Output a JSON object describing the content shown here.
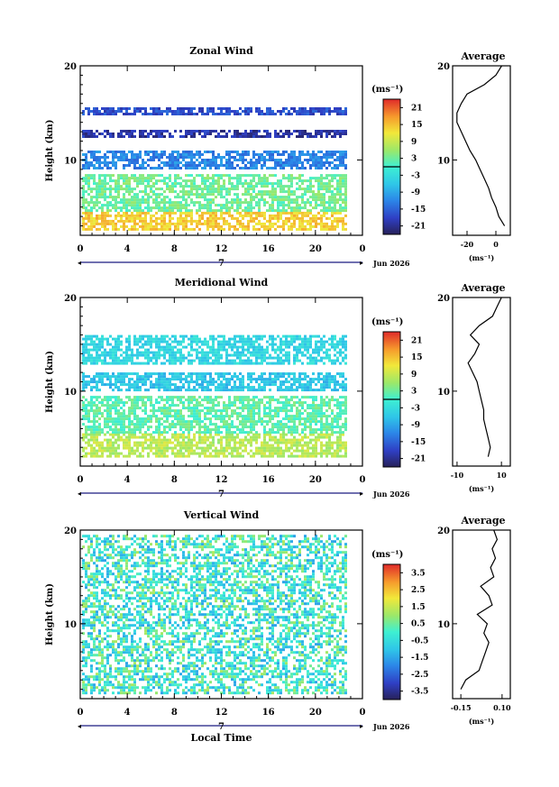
{
  "figure": {
    "date_label": "Jun 2026",
    "day_label": "7",
    "xlabel_bottom": "Local Time"
  },
  "chart_data": [
    {
      "type": "heatmap",
      "title": "Zonal Wind",
      "xlabel": "",
      "ylabel": "Height (km)",
      "x_ticks": [
        "0",
        "4",
        "8",
        "12",
        "16",
        "20",
        "0"
      ],
      "y_ticks": [
        "20",
        "10"
      ],
      "xlim": [
        0,
        24
      ],
      "ylim": [
        2,
        20
      ],
      "colorbar": {
        "unit": "(ms⁻¹)",
        "ticks": [
          "21",
          "15",
          "9",
          "3",
          "-3",
          "-9",
          "-15",
          "-21"
        ],
        "range": [
          -24,
          24
        ]
      },
      "description_values": {
        "bands": [
          {
            "height_range": [
              2.5,
              4.5
            ],
            "value": 14
          },
          {
            "height_range": [
              4.5,
              8.5
            ],
            "value": 3
          },
          {
            "height_range": [
              9.0,
              11.0
            ],
            "value": -12
          },
          {
            "height_range": [
              12.5,
              13.2
            ],
            "value": -20
          },
          {
            "height_range": [
              15.0,
              15.6
            ],
            "value": -17
          }
        ]
      },
      "profile": {
        "title": "Average",
        "x_ticks": [
          "-20",
          "0"
        ],
        "xlabel": "(ms⁻¹)",
        "y_ticks": [
          "20",
          "10"
        ],
        "xlim": [
          -30,
          10
        ],
        "heights": [
          3,
          4,
          5,
          6,
          7,
          8,
          9,
          10,
          11,
          12,
          13,
          14,
          15,
          16,
          17,
          18,
          19,
          20
        ],
        "values": [
          6,
          2,
          0,
          -3,
          -5,
          -8,
          -11,
          -14,
          -18,
          -21,
          -24,
          -27,
          -27,
          -24,
          -20,
          -8,
          0,
          4
        ]
      }
    },
    {
      "type": "heatmap",
      "title": "Meridional Wind",
      "xlabel": "",
      "ylabel": "Height (km)",
      "x_ticks": [
        "0",
        "4",
        "8",
        "12",
        "16",
        "20",
        "0"
      ],
      "y_ticks": [
        "20",
        "10"
      ],
      "xlim": [
        0,
        24
      ],
      "ylim": [
        2,
        20
      ],
      "colorbar": {
        "unit": "(ms⁻¹)",
        "ticks": [
          "21",
          "15",
          "9",
          "3",
          "-3",
          "-9",
          "-15",
          "-21"
        ],
        "range": [
          -24,
          24
        ]
      },
      "description_values": {
        "bands": [
          {
            "height_range": [
              3.0,
              5.5
            ],
            "value": 8
          },
          {
            "height_range": [
              5.5,
              9.5
            ],
            "value": 2
          },
          {
            "height_range": [
              10.0,
              12.0
            ],
            "value": -6
          },
          {
            "height_range": [
              13.0,
              16.0
            ],
            "value": -4
          }
        ]
      },
      "profile": {
        "title": "Average",
        "x_ticks": [
          "-10",
          "10"
        ],
        "xlabel": "(ms⁻¹)",
        "y_ticks": [
          "20",
          "10"
        ],
        "xlim": [
          -12,
          14
        ],
        "heights": [
          3,
          4,
          5,
          6,
          7,
          8,
          9,
          10,
          11,
          12,
          13,
          14,
          15,
          16,
          17,
          18,
          19,
          20
        ],
        "values": [
          4,
          5,
          4,
          3,
          2,
          2,
          1,
          0,
          -1,
          -3,
          -5,
          -2,
          0,
          -4,
          0,
          6,
          8,
          10
        ]
      }
    },
    {
      "type": "heatmap",
      "title": "Vertical Wind",
      "xlabel": "Local Time",
      "ylabel": "Height (km)",
      "x_ticks": [
        "0",
        "4",
        "8",
        "12",
        "16",
        "20",
        "0"
      ],
      "y_ticks": [
        "20",
        "10"
      ],
      "xlim": [
        0,
        24
      ],
      "ylim": [
        2,
        20
      ],
      "colorbar": {
        "unit": "(ms⁻¹)",
        "ticks": [
          "3.5",
          "2.5",
          "1.5",
          "0.5",
          "-0.5",
          "-1.5",
          "-2.5",
          "-3.5"
        ],
        "range": [
          -4,
          4
        ]
      },
      "description_values": {
        "bands": [
          {
            "height_range": [
              2.5,
              19.5
            ],
            "value": -0.2
          }
        ]
      },
      "profile": {
        "title": "Average",
        "x_ticks": [
          "-0.15",
          "0.10"
        ],
        "xlabel": "(ms⁻¹)",
        "y_ticks": [
          "20",
          "10"
        ],
        "xlim": [
          -0.2,
          0.15
        ],
        "heights": [
          3,
          4,
          5,
          6,
          7,
          8,
          9,
          10,
          11,
          12,
          13,
          14,
          15,
          16,
          17,
          18,
          19,
          20
        ],
        "values": [
          -0.15,
          -0.12,
          -0.04,
          -0.02,
          0.0,
          0.02,
          -0.01,
          0.01,
          -0.05,
          0.04,
          0.02,
          -0.03,
          0.05,
          0.03,
          0.06,
          0.04,
          0.07,
          0.05
        ]
      }
    }
  ]
}
